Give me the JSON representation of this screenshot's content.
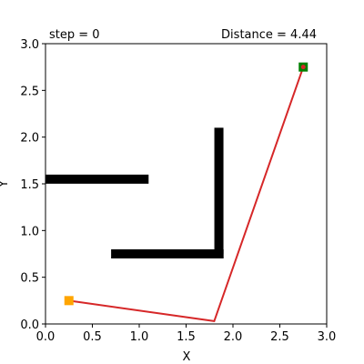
{
  "step_text": "step = 0",
  "distance_text": "Distance = 4.44",
  "chart_data": {
    "type": "line",
    "xlabel": "X",
    "ylabel": "Y",
    "xlim": [
      0,
      3
    ],
    "ylim": [
      0,
      3
    ],
    "xticks": [
      "0.0",
      "0.5",
      "1.0",
      "1.5",
      "2.0",
      "2.5",
      "3.0"
    ],
    "yticks": [
      "0.0",
      "0.5",
      "1.0",
      "1.5",
      "2.0",
      "2.5",
      "3.0"
    ],
    "grid": false,
    "legend": "none",
    "obstacles": [
      {
        "x": [
          0.0,
          1.1
        ],
        "y": [
          1.55,
          1.55
        ]
      },
      {
        "x": [
          1.85,
          1.85
        ],
        "y": [
          0.75,
          2.1
        ]
      },
      {
        "x": [
          0.7,
          1.9
        ],
        "y": [
          0.75,
          0.75
        ]
      }
    ],
    "path": {
      "x": [
        0.25,
        1.8,
        2.75
      ],
      "y": [
        0.25,
        0.03,
        2.75
      ]
    },
    "start": {
      "x": 0.25,
      "y": 0.25
    },
    "goal": {
      "x": 2.75,
      "y": 2.75
    },
    "colors": {
      "path": "#d62728",
      "start": "#ffa500",
      "goal": "#008000",
      "obstacle": "#000000"
    }
  }
}
